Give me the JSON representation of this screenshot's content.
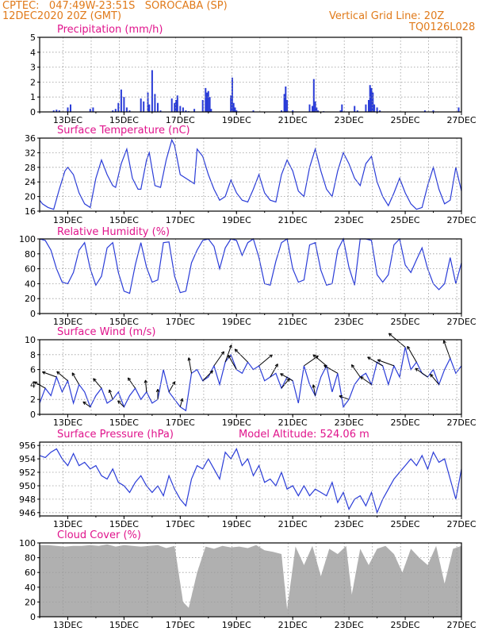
{
  "header": {
    "line1": "CPTEC:   047:49W-23:51S   SOROCABA (SP)",
    "line2": "12DEC2020 20Z (GMT)",
    "grid_note": "Vertical Grid Line: 20Z",
    "model_code": "TQ0126L028"
  },
  "colors": {
    "header": "#e07a1a",
    "title": "#e0148c",
    "line": "#2a3cd8",
    "bar": "#2a3cd8",
    "cloud": "#a9a9a9",
    "arrow": "#000000",
    "grid": "#9a9a9a"
  },
  "x_ticks": [
    "13DEC",
    "15DEC",
    "17DEC",
    "19DEC",
    "21DEC",
    "23DEC",
    "25DEC",
    "27DEC"
  ],
  "x_range_days": [
    12.0,
    27.0
  ],
  "chart_data": [
    {
      "type": "bar",
      "title": "Precipitation (mm/h)",
      "ylim": [
        0,
        5
      ],
      "yticks": [
        0,
        1,
        2,
        3,
        4,
        5
      ],
      "grid": true,
      "x": [
        12.5,
        12.6,
        12.7,
        13.0,
        13.1,
        13.8,
        13.9,
        14.6,
        14.7,
        14.8,
        14.9,
        15.0,
        15.1,
        15.2,
        15.6,
        15.7,
        15.85,
        15.9,
        16.0,
        16.1,
        16.2,
        16.3,
        16.7,
        16.8,
        16.85,
        16.9,
        17.0,
        17.1,
        17.2,
        17.3,
        17.5,
        17.8,
        17.9,
        17.95,
        18.0,
        18.05,
        18.1,
        18.8,
        18.85,
        18.9,
        18.95,
        19.0,
        19.6,
        20.6,
        20.7,
        20.75,
        20.8,
        21.0,
        21.6,
        21.7,
        21.75,
        21.8,
        21.85,
        21.9,
        22.1,
        22.7,
        22.75,
        23.2,
        23.3,
        23.6,
        23.7,
        23.75,
        23.8,
        23.85,
        23.9,
        24.0,
        24.1,
        25.7,
        26.0,
        26.9
      ],
      "values": [
        0.1,
        0.15,
        0.1,
        0.3,
        0.5,
        0.2,
        0.3,
        0.1,
        0.2,
        0.6,
        1.5,
        1.0,
        0.3,
        0.1,
        0.9,
        0.7,
        1.3,
        0.5,
        2.8,
        1.2,
        0.6,
        0.1,
        0.9,
        0.6,
        0.8,
        1.1,
        0.4,
        0.3,
        0.1,
        0.05,
        0.2,
        0.8,
        1.6,
        1.3,
        1.4,
        1.0,
        0.2,
        1.1,
        2.3,
        0.6,
        0.3,
        0.1,
        0.1,
        0.1,
        1.2,
        1.7,
        0.8,
        0.1,
        0.5,
        0.4,
        2.2,
        0.7,
        0.3,
        0.1,
        0.05,
        0.1,
        0.5,
        0.4,
        0.1,
        0.5,
        0.8,
        1.8,
        1.6,
        1.3,
        0.5,
        0.3,
        0.1,
        0.1,
        0.1,
        0.3
      ]
    },
    {
      "type": "line",
      "title": "Surface Temperature (nC)",
      "ylim": [
        16,
        36
      ],
      "yticks": [
        16,
        20,
        24,
        28,
        32,
        36
      ],
      "grid": true,
      "x": [
        12.0,
        12.1,
        12.3,
        12.5,
        12.7,
        12.9,
        13.0,
        13.2,
        13.4,
        13.6,
        13.8,
        14.0,
        14.2,
        14.4,
        14.6,
        14.7,
        14.9,
        15.1,
        15.3,
        15.5,
        15.6,
        15.8,
        15.9,
        16.1,
        16.3,
        16.5,
        16.7,
        16.8,
        17.0,
        17.3,
        17.5,
        17.6,
        17.8,
        18.0,
        18.2,
        18.4,
        18.6,
        18.8,
        19.0,
        19.2,
        19.4,
        19.6,
        19.8,
        20.0,
        20.2,
        20.4,
        20.6,
        20.8,
        21.0,
        21.2,
        21.4,
        21.6,
        21.8,
        22.0,
        22.2,
        22.4,
        22.6,
        22.8,
        23.0,
        23.2,
        23.4,
        23.6,
        23.8,
        24.0,
        24.2,
        24.4,
        24.6,
        24.8,
        25.0,
        25.2,
        25.4,
        25.6,
        25.8,
        26.0,
        26.2,
        26.4,
        26.6,
        26.8,
        27.0
      ],
      "values": [
        19,
        18,
        17,
        16.5,
        22,
        27,
        28,
        26,
        21,
        18,
        17,
        25,
        30,
        26,
        23,
        22.5,
        29,
        33,
        25,
        22,
        22,
        30,
        32,
        23,
        22.5,
        30,
        35.5,
        34,
        26,
        24.5,
        23.5,
        33,
        31,
        26,
        22,
        19,
        20,
        24.5,
        21,
        19,
        18.5,
        22,
        26,
        21,
        19,
        18.5,
        26,
        30,
        27,
        21.5,
        20,
        28,
        33,
        27,
        22,
        20,
        27,
        32,
        29,
        25,
        23,
        29,
        31,
        24,
        20,
        17.5,
        21,
        25,
        21,
        18,
        16.5,
        17,
        23,
        28,
        22,
        18,
        19,
        28,
        21.5
      ]
    },
    {
      "type": "line",
      "title": "Relative Humidity (%)",
      "ylim": [
        0,
        100
      ],
      "yticks": [
        0,
        20,
        40,
        60,
        80,
        100
      ],
      "grid": true,
      "x": [
        12.0,
        12.2,
        12.4,
        12.6,
        12.8,
        13.0,
        13.2,
        13.4,
        13.6,
        13.8,
        14.0,
        14.2,
        14.4,
        14.6,
        14.8,
        15.0,
        15.2,
        15.4,
        15.6,
        15.8,
        16.0,
        16.2,
        16.4,
        16.6,
        16.8,
        17.0,
        17.2,
        17.4,
        17.6,
        17.8,
        18.0,
        18.2,
        18.4,
        18.6,
        18.8,
        19.0,
        19.2,
        19.4,
        19.6,
        19.8,
        20.0,
        20.2,
        20.4,
        20.6,
        20.8,
        21.0,
        21.2,
        21.4,
        21.6,
        21.8,
        22.0,
        22.2,
        22.4,
        22.6,
        22.8,
        23.0,
        23.2,
        23.4,
        23.6,
        23.8,
        24.0,
        24.2,
        24.4,
        24.6,
        24.8,
        25.0,
        25.2,
        25.4,
        25.6,
        25.8,
        26.0,
        26.2,
        26.4,
        26.6,
        26.8,
        27.0
      ],
      "values": [
        100,
        98,
        85,
        60,
        42,
        40,
        55,
        85,
        95,
        60,
        38,
        50,
        88,
        95,
        55,
        30,
        27,
        65,
        95,
        62,
        42,
        45,
        95,
        96,
        50,
        28,
        30,
        68,
        85,
        98,
        100,
        90,
        60,
        88,
        100,
        98,
        78,
        95,
        100,
        75,
        40,
        38,
        70,
        95,
        100,
        60,
        42,
        45,
        92,
        95,
        58,
        38,
        40,
        85,
        100,
        62,
        38,
        100,
        100,
        98,
        52,
        42,
        52,
        92,
        100,
        65,
        55,
        72,
        88,
        60,
        40,
        32,
        40,
        75,
        40,
        68
      ]
    },
    {
      "type": "line",
      "title": "Surface Wind (m/s)",
      "ylim": [
        0,
        10
      ],
      "yticks": [
        0,
        2,
        4,
        6,
        8,
        10
      ],
      "grid": true,
      "x": [
        12.0,
        12.2,
        12.4,
        12.6,
        12.8,
        13.0,
        13.2,
        13.4,
        13.6,
        13.8,
        14.0,
        14.2,
        14.4,
        14.6,
        14.8,
        15.0,
        15.2,
        15.4,
        15.6,
        15.8,
        16.0,
        16.2,
        16.4,
        16.6,
        16.8,
        17.0,
        17.2,
        17.4,
        17.6,
        17.8,
        18.0,
        18.2,
        18.4,
        18.6,
        18.8,
        19.0,
        19.2,
        19.4,
        19.6,
        19.8,
        20.0,
        20.2,
        20.4,
        20.6,
        20.8,
        21.0,
        21.2,
        21.4,
        21.6,
        21.8,
        22.0,
        22.2,
        22.4,
        22.6,
        22.8,
        23.0,
        23.2,
        23.4,
        23.6,
        23.8,
        24.0,
        24.2,
        24.4,
        24.6,
        24.8,
        25.0,
        25.2,
        25.4,
        25.6,
        25.8,
        26.0,
        26.2,
        26.4,
        26.6,
        26.8,
        27.0
      ],
      "values": [
        1.5,
        3.5,
        2.5,
        5,
        3,
        4.5,
        1.5,
        4,
        3,
        1,
        2.5,
        3.5,
        1.5,
        2,
        3,
        1,
        2.5,
        3.5,
        2,
        3,
        1.5,
        2,
        6,
        3,
        2,
        1,
        0.5,
        5.5,
        6,
        4.5,
        5,
        6.5,
        4,
        7,
        8,
        6,
        5.5,
        7,
        6,
        6.5,
        4.5,
        5,
        5.5,
        3.5,
        5,
        4.5,
        1.5,
        6.5,
        4,
        2.5,
        5,
        6.5,
        3,
        5.5,
        1,
        2,
        4,
        5,
        5.5,
        4,
        7,
        6.5,
        4,
        6.5,
        5,
        9,
        6,
        7,
        5.5,
        5,
        6,
        4,
        6,
        7.5,
        5.5,
        6.5
      ]
    },
    {
      "type": "line",
      "title": "Surface Pressure (hPa)",
      "annotation": "Model Altitude: 524.06  m",
      "ylim": [
        945.5,
        956.5
      ],
      "yticks": [
        946,
        948,
        950,
        952,
        954,
        956
      ],
      "grid": true,
      "x": [
        12.0,
        12.2,
        12.4,
        12.6,
        12.8,
        13.0,
        13.2,
        13.4,
        13.6,
        13.8,
        14.0,
        14.2,
        14.4,
        14.6,
        14.8,
        15.0,
        15.2,
        15.4,
        15.6,
        15.8,
        16.0,
        16.2,
        16.4,
        16.6,
        16.8,
        17.0,
        17.2,
        17.4,
        17.6,
        17.8,
        18.0,
        18.2,
        18.4,
        18.6,
        18.8,
        19.0,
        19.2,
        19.4,
        19.6,
        19.8,
        20.0,
        20.2,
        20.4,
        20.6,
        20.8,
        21.0,
        21.2,
        21.4,
        21.6,
        21.8,
        22.0,
        22.2,
        22.4,
        22.6,
        22.8,
        23.0,
        23.2,
        23.4,
        23.6,
        23.8,
        24.0,
        24.2,
        24.4,
        24.6,
        24.8,
        25.0,
        25.2,
        25.4,
        25.6,
        25.8,
        26.0,
        26.2,
        26.4,
        26.6,
        26.8,
        27.0
      ],
      "values": [
        954.5,
        954.2,
        955,
        955.5,
        954,
        953,
        954.8,
        953,
        953.5,
        952.5,
        953,
        951.5,
        951,
        952.5,
        950.5,
        950,
        949,
        950.5,
        951.5,
        950,
        949,
        950,
        948.5,
        951.5,
        949.5,
        948,
        947,
        951,
        953,
        952.5,
        954,
        952.5,
        951,
        955,
        954,
        955.5,
        953,
        954,
        951.5,
        953,
        950.5,
        951,
        950,
        952,
        949.5,
        950,
        948.5,
        950,
        948.5,
        949.5,
        949,
        948.5,
        950.5,
        947.5,
        949,
        946.5,
        948,
        948.5,
        947,
        949,
        946,
        948,
        949.5,
        951,
        952,
        953,
        954,
        953,
        954.5,
        952.5,
        955,
        953.5,
        954,
        951,
        948,
        952.5
      ]
    },
    {
      "type": "area",
      "title": "Cloud Cover (%)",
      "ylim": [
        0,
        100
      ],
      "yticks": [
        0,
        20,
        40,
        60,
        80,
        100
      ],
      "grid": true,
      "x": [
        12.0,
        12.3,
        12.6,
        12.9,
        13.2,
        13.5,
        13.8,
        14.1,
        14.4,
        14.7,
        15.0,
        15.3,
        15.6,
        15.9,
        16.2,
        16.5,
        16.8,
        17.1,
        17.3,
        17.6,
        17.9,
        18.2,
        18.5,
        18.8,
        19.1,
        19.4,
        19.7,
        20.0,
        20.3,
        20.6,
        20.8,
        21.1,
        21.4,
        21.7,
        22.0,
        22.3,
        22.6,
        22.9,
        23.1,
        23.4,
        23.7,
        24.0,
        24.3,
        24.6,
        24.9,
        25.2,
        25.5,
        25.8,
        26.1,
        26.4,
        26.7,
        27.0
      ],
      "values": [
        97,
        97,
        96,
        95,
        96,
        96,
        97,
        96,
        98,
        95,
        97,
        96,
        95,
        96,
        97,
        93,
        96,
        20,
        12,
        60,
        95,
        92,
        96,
        94,
        95,
        93,
        97,
        90,
        88,
        85,
        10,
        95,
        70,
        96,
        55,
        92,
        85,
        96,
        30,
        92,
        70,
        92,
        96,
        85,
        60,
        92,
        80,
        70,
        96,
        45,
        92,
        96
      ]
    }
  ]
}
